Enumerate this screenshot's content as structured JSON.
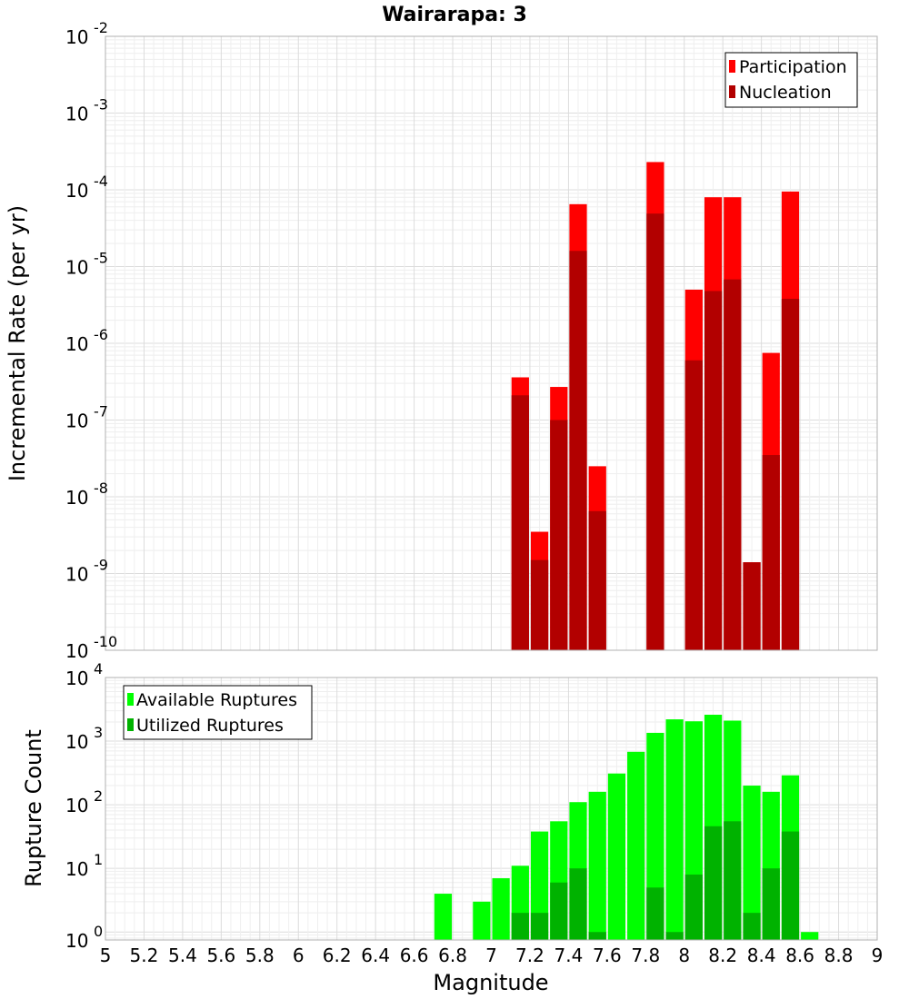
{
  "chart_data": {
    "type": "bar",
    "title": "Wairarapa: 3",
    "xlabel": "Magnitude",
    "xlim": [
      5,
      9
    ],
    "xticks": [
      "5",
      "5.2",
      "5.4",
      "5.6",
      "5.8",
      "6",
      "6.2",
      "6.4",
      "6.6",
      "6.8",
      "7",
      "7.2",
      "7.4",
      "7.6",
      "7.8",
      "8",
      "8.2",
      "8.4",
      "8.6",
      "8.8",
      "9"
    ],
    "bin_width": 0.1,
    "grid": true,
    "panels": [
      {
        "ylabel": "Incremental Rate (per yr)",
        "yscale": "log",
        "ylim": [
          1e-10,
          0.01
        ],
        "ytick_exponents": [
          "-10",
          "-9",
          "-8",
          "-7",
          "-6",
          "-5",
          "-4",
          "-3",
          "-2"
        ],
        "legend_position": "top-right",
        "series": [
          {
            "name": "Participation",
            "color": "#ff0000",
            "x": [
              7.15,
              7.25,
              7.35,
              7.45,
              7.55,
              7.85,
              8.05,
              8.15,
              8.25,
              8.35,
              8.45,
              8.55
            ],
            "values": [
              3.6e-07,
              3.5e-09,
              2.7e-07,
              6.5e-05,
              2.5e-08,
              0.00023,
              5e-06,
              8e-05,
              8e-05,
              1.4e-09,
              7.5e-07,
              9.5e-05
            ]
          },
          {
            "name": "Nucleation",
            "color": "#b20000",
            "x": [
              7.15,
              7.25,
              7.35,
              7.45,
              7.55,
              7.85,
              8.05,
              8.15,
              8.25,
              8.35,
              8.45,
              8.55
            ],
            "values": [
              2.1e-07,
              1.5e-09,
              1e-07,
              1.6e-05,
              6.5e-09,
              4.9e-05,
              6e-07,
              4.8e-06,
              6.8e-06,
              1.4e-09,
              3.5e-08,
              3.8e-06
            ]
          }
        ]
      },
      {
        "ylabel": "Rupture Count",
        "yscale": "log",
        "ylim": [
          0.75,
          10000
        ],
        "ytick_exponents": [
          "0",
          "1",
          "2",
          "3",
          "4"
        ],
        "legend_position": "top-left",
        "series": [
          {
            "name": "Available Ruptures",
            "color": "#00ff00",
            "x": [
              6.75,
              6.95,
              7.05,
              7.15,
              7.25,
              7.35,
              7.45,
              7.55,
              7.65,
              7.75,
              7.85,
              7.95,
              8.05,
              8.15,
              8.25,
              8.35,
              8.45,
              8.55,
              8.65
            ],
            "values": [
              4,
              3,
              7,
              11,
              38,
              55,
              110,
              160,
              310,
              680,
              1350,
              2200,
              2050,
              2600,
              2100,
              200,
              160,
              290,
              1
            ]
          },
          {
            "name": "Utilized Ruptures",
            "color": "#00b200",
            "x": [
              7.15,
              7.25,
              7.35,
              7.45,
              7.55,
              7.85,
              7.95,
              8.05,
              8.15,
              8.25,
              8.35,
              8.45,
              8.55
            ],
            "values": [
              2,
              2,
              6,
              10,
              1,
              5,
              1,
              8,
              46,
              55,
              2,
              10,
              38
            ]
          }
        ]
      }
    ]
  }
}
